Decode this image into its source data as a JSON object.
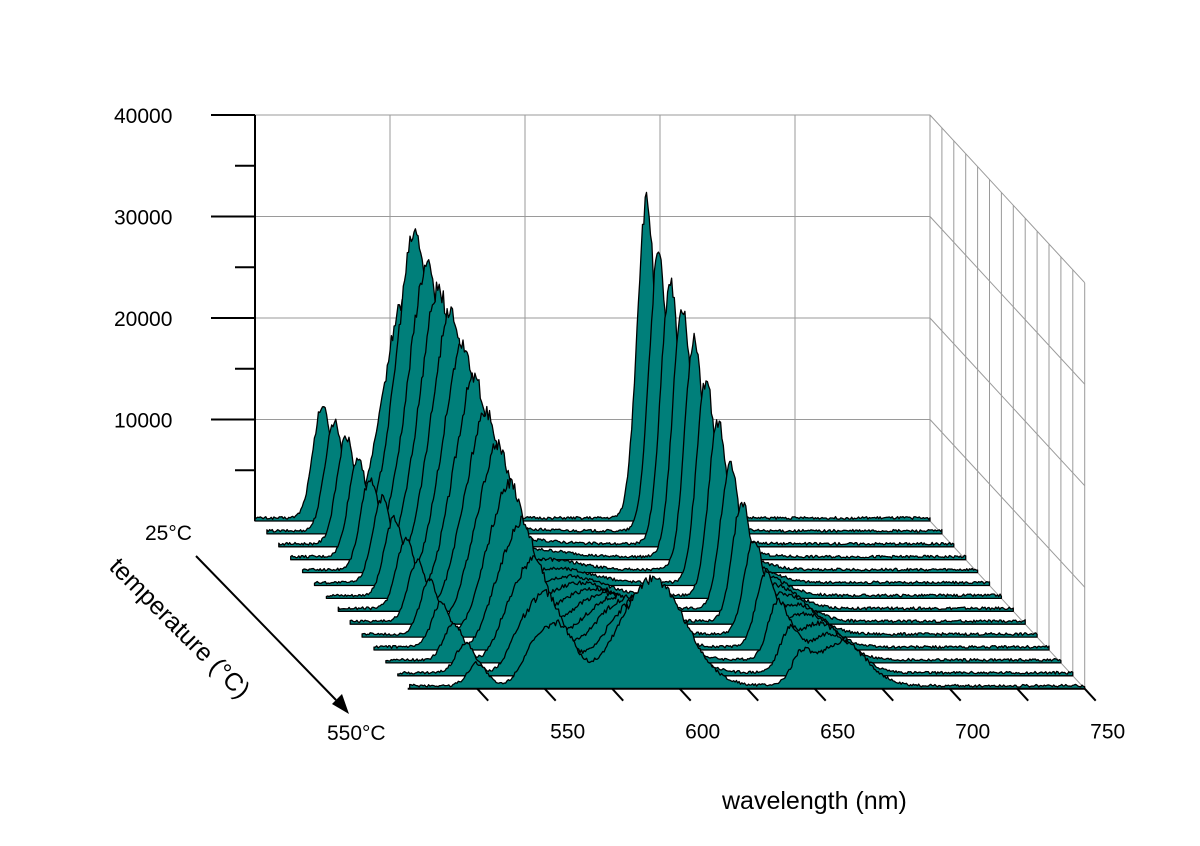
{
  "chart_data": {
    "type": "area",
    "render": "3d-waterfall",
    "colors": {
      "fill": "#007F7A",
      "outline": "#000000",
      "grid": "#9A9A9A",
      "axis": "#000000"
    },
    "x_axis": {
      "label": "wavelength (nm)",
      "range": [
        500,
        750
      ],
      "ticks": [
        550,
        600,
        650,
        700,
        750
      ],
      "tick_labels": [
        "550",
        "600",
        "650",
        "700",
        "750"
      ]
    },
    "y_axis": {
      "label": "",
      "range": [
        0,
        40000
      ],
      "ticks": [
        10000,
        20000,
        30000,
        40000
      ],
      "tick_labels": [
        "10000",
        "20000",
        "30000",
        "40000"
      ]
    },
    "z_axis": {
      "label": "temperature (°C)",
      "start_label": "25°C",
      "end_label": "550°C",
      "range": [
        25,
        550
      ]
    },
    "peak_wavelengths_nm": [
      525,
      545,
      555,
      590,
      645,
      660
    ],
    "peak_widths_nm": [
      3.5,
      4.5,
      6,
      12,
      3.5,
      9
    ],
    "series": [
      {
        "temperature": 25,
        "peaks": [
          11000,
          3200,
          21000,
          0,
          31000,
          400
        ]
      },
      {
        "temperature": 65,
        "peaks": [
          10800,
          3400,
          29000,
          200,
          27000,
          700
        ]
      },
      {
        "temperature": 106,
        "peaks": [
          10500,
          3600,
          27000,
          400,
          25500,
          900
        ]
      },
      {
        "temperature": 146,
        "peaks": [
          9800,
          3800,
          26000,
          700,
          24500,
          1200
        ]
      },
      {
        "temperature": 187,
        "peaks": [
          9000,
          4000,
          25000,
          1000,
          22500,
          1500
        ]
      },
      {
        "temperature": 227,
        "peaks": [
          8300,
          4100,
          23000,
          1400,
          19500,
          1800
        ]
      },
      {
        "temperature": 267,
        "peaks": [
          7600,
          4100,
          21000,
          1900,
          16500,
          2100
        ]
      },
      {
        "temperature": 308,
        "peaks": [
          6800,
          4000,
          19000,
          2500,
          13500,
          2400
        ]
      },
      {
        "temperature": 348,
        "peaks": [
          6000,
          3900,
          17000,
          3200,
          11000,
          2700
        ]
      },
      {
        "temperature": 388,
        "peaks": [
          5200,
          3700,
          14500,
          4000,
          8500,
          3000
        ]
      },
      {
        "temperature": 429,
        "peaks": [
          4400,
          3500,
          12000,
          5000,
          6500,
          3300
        ]
      },
      {
        "temperature": 469,
        "peaks": [
          3600,
          3200,
          9500,
          6200,
          5000,
          3600
        ]
      },
      {
        "temperature": 510,
        "peaks": [
          2900,
          2900,
          7500,
          7500,
          3500,
          3900
        ]
      },
      {
        "temperature": 550,
        "peaks": [
          2200,
          2600,
          5800,
          10500,
          2500,
          4300
        ]
      }
    ]
  }
}
